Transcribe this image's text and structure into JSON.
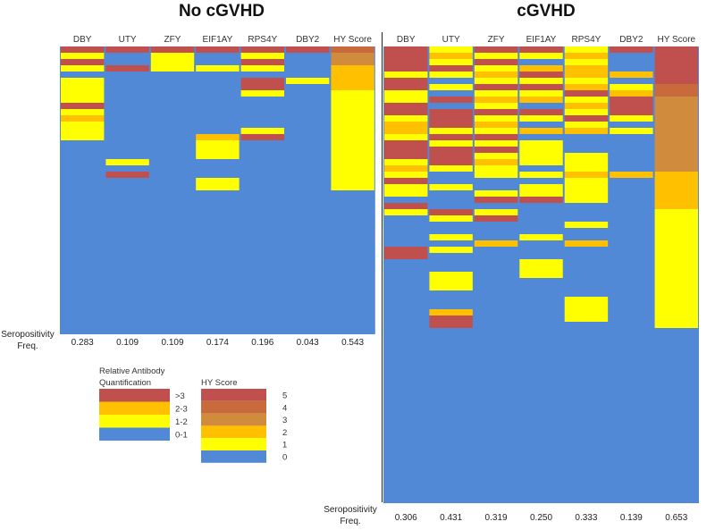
{
  "chart_data": {
    "type": "heatmap",
    "colors": {
      "0": "#5289D6",
      "1": "#FFFF00",
      "2": "#FFC000",
      "3": "#D08C3C",
      "4": "#C86A3C",
      "5": "#C0504D"
    },
    "panels": [
      {
        "title": "No cGVHD",
        "n_rows": 46,
        "columns": [
          "DBY",
          "UTY",
          "ZFY",
          "EIF1AY",
          "RPS4Y",
          "DBY2",
          "HY Score"
        ],
        "frequency_label": [
          "Seropositivity",
          "Freq."
        ],
        "frequencies": [
          "0.283",
          "0.109",
          "0.109",
          "0.174",
          "0.196",
          "0.043",
          "0.543"
        ],
        "runs": [
          [
            [
              0,
              1,
              5
            ],
            [
              1,
              2,
              1
            ],
            [
              2,
              3,
              5
            ],
            [
              3,
              4,
              1
            ],
            [
              4,
              5,
              0
            ],
            [
              5,
              6,
              1
            ],
            [
              6,
              9,
              1
            ],
            [
              9,
              10,
              5
            ],
            [
              10,
              11,
              1
            ],
            [
              11,
              12,
              2
            ],
            [
              12,
              15,
              1
            ]
          ],
          [
            [
              0,
              1,
              5
            ],
            [
              1,
              3,
              0
            ],
            [
              3,
              4,
              5
            ],
            [
              18,
              19,
              1
            ],
            [
              20,
              21,
              5
            ]
          ],
          [
            [
              0,
              1,
              5
            ],
            [
              1,
              4,
              1
            ]
          ],
          [
            [
              0,
              1,
              5
            ],
            [
              1,
              3,
              0
            ],
            [
              3,
              4,
              1
            ],
            [
              14,
              15,
              2
            ],
            [
              15,
              18,
              1
            ],
            [
              21,
              23,
              1
            ]
          ],
          [
            [
              0,
              1,
              5
            ],
            [
              1,
              2,
              1
            ],
            [
              2,
              3,
              5
            ],
            [
              3,
              4,
              1
            ],
            [
              5,
              7,
              5
            ],
            [
              7,
              8,
              1
            ],
            [
              13,
              14,
              1
            ],
            [
              14,
              15,
              5
            ]
          ],
          [
            [
              0,
              1,
              5
            ],
            [
              5,
              6,
              1
            ]
          ],
          [
            [
              0,
              1,
              4
            ],
            [
              1,
              3,
              3
            ],
            [
              3,
              4,
              2
            ],
            [
              4,
              7,
              2
            ],
            [
              7,
              23,
              1
            ]
          ]
        ]
      },
      {
        "title": "cGVHD",
        "n_rows": 73,
        "columns": [
          "DBY",
          "UTY",
          "ZFY",
          "EIF1AY",
          "RPS4Y",
          "DBY2",
          "HY Score"
        ],
        "frequency_label": [
          "Seropositivity",
          "Freq."
        ],
        "frequencies": [
          "0.306",
          "0.431",
          "0.319",
          "0.250",
          "0.333",
          "0.139",
          "0.653"
        ],
        "runs": [
          [
            [
              0,
              4,
              5
            ],
            [
              4,
              5,
              1
            ],
            [
              5,
              7,
              5
            ],
            [
              7,
              8,
              1
            ],
            [
              8,
              9,
              1
            ],
            [
              9,
              11,
              5
            ],
            [
              11,
              12,
              1
            ],
            [
              12,
              14,
              2
            ],
            [
              14,
              15,
              1
            ],
            [
              15,
              16,
              5
            ],
            [
              16,
              18,
              5
            ],
            [
              18,
              19,
              1
            ],
            [
              19,
              20,
              2
            ],
            [
              20,
              21,
              1
            ],
            [
              21,
              22,
              5
            ],
            [
              22,
              23,
              1
            ],
            [
              23,
              24,
              1
            ],
            [
              25,
              26,
              5
            ],
            [
              26,
              27,
              1
            ],
            [
              32,
              34,
              5
            ]
          ],
          [
            [
              0,
              1,
              1
            ],
            [
              1,
              2,
              2
            ],
            [
              2,
              3,
              1
            ],
            [
              3,
              4,
              5
            ],
            [
              4,
              5,
              1
            ],
            [
              6,
              7,
              1
            ],
            [
              8,
              9,
              5
            ],
            [
              10,
              13,
              5
            ],
            [
              13,
              14,
              1
            ],
            [
              14,
              15,
              5
            ],
            [
              15,
              16,
              1
            ],
            [
              16,
              19,
              5
            ],
            [
              19,
              20,
              1
            ],
            [
              22,
              23,
              1
            ],
            [
              26,
              27,
              5
            ],
            [
              27,
              28,
              1
            ],
            [
              30,
              31,
              1
            ],
            [
              32,
              33,
              1
            ],
            [
              36,
              39,
              1
            ],
            [
              42,
              43,
              2
            ],
            [
              43,
              45,
              5
            ]
          ],
          [
            [
              0,
              1,
              5
            ],
            [
              1,
              2,
              1
            ],
            [
              2,
              3,
              5
            ],
            [
              3,
              4,
              1
            ],
            [
              4,
              5,
              2
            ],
            [
              5,
              6,
              1
            ],
            [
              6,
              7,
              5
            ],
            [
              7,
              8,
              1
            ],
            [
              8,
              9,
              2
            ],
            [
              9,
              10,
              1
            ],
            [
              10,
              11,
              5
            ],
            [
              11,
              12,
              1
            ],
            [
              12,
              13,
              2
            ],
            [
              13,
              14,
              1
            ],
            [
              14,
              15,
              5
            ],
            [
              15,
              16,
              1
            ],
            [
              16,
              17,
              5
            ],
            [
              17,
              18,
              1
            ],
            [
              18,
              19,
              2
            ],
            [
              19,
              20,
              1
            ],
            [
              20,
              21,
              1
            ],
            [
              23,
              24,
              1
            ],
            [
              24,
              25,
              5
            ],
            [
              26,
              27,
              1
            ],
            [
              27,
              28,
              5
            ],
            [
              31,
              32,
              2
            ]
          ],
          [
            [
              0,
              1,
              5
            ],
            [
              1,
              2,
              1
            ],
            [
              3,
              4,
              2
            ],
            [
              4,
              5,
              5
            ],
            [
              5,
              6,
              1
            ],
            [
              6,
              7,
              5
            ],
            [
              7,
              8,
              1
            ],
            [
              8,
              9,
              2
            ],
            [
              10,
              11,
              5
            ],
            [
              11,
              12,
              1
            ],
            [
              13,
              14,
              2
            ],
            [
              15,
              17,
              1
            ],
            [
              17,
              18,
              1
            ],
            [
              18,
              19,
              1
            ],
            [
              20,
              21,
              1
            ],
            [
              22,
              23,
              1
            ],
            [
              23,
              24,
              1
            ],
            [
              24,
              25,
              5
            ],
            [
              30,
              31,
              1
            ],
            [
              34,
              37,
              1
            ]
          ],
          [
            [
              0,
              1,
              1
            ],
            [
              1,
              2,
              2
            ],
            [
              2,
              3,
              1
            ],
            [
              3,
              5,
              2
            ],
            [
              5,
              6,
              1
            ],
            [
              6,
              7,
              2
            ],
            [
              7,
              8,
              5
            ],
            [
              8,
              9,
              1
            ],
            [
              9,
              10,
              2
            ],
            [
              10,
              11,
              1
            ],
            [
              11,
              12,
              5
            ],
            [
              12,
              13,
              1
            ],
            [
              13,
              14,
              2
            ],
            [
              17,
              19,
              1
            ],
            [
              19,
              20,
              1
            ],
            [
              20,
              21,
              2
            ],
            [
              21,
              22,
              1
            ],
            [
              22,
              25,
              1
            ],
            [
              28,
              29,
              1
            ],
            [
              31,
              32,
              2
            ],
            [
              40,
              44,
              1
            ]
          ],
          [
            [
              0,
              1,
              5
            ],
            [
              4,
              5,
              2
            ],
            [
              6,
              7,
              1
            ],
            [
              7,
              8,
              2
            ],
            [
              8,
              11,
              5
            ],
            [
              11,
              12,
              1
            ],
            [
              13,
              14,
              1
            ],
            [
              20,
              21,
              2
            ]
          ],
          [
            [
              0,
              6,
              5
            ],
            [
              6,
              8,
              4
            ],
            [
              8,
              12,
              3
            ],
            [
              12,
              17,
              3
            ],
            [
              17,
              20,
              3
            ],
            [
              20,
              26,
              2
            ],
            [
              26,
              45,
              1
            ]
          ]
        ]
      }
    ],
    "legend_antibody": {
      "title": [
        "Relative Antibody",
        "Quantification"
      ],
      "items": [
        {
          "label": ">3",
          "level": 5
        },
        {
          "label": "2-3",
          "level": 2
        },
        {
          "label": "1-2",
          "level": 1
        },
        {
          "label": "0-1",
          "level": 0
        }
      ]
    },
    "legend_hy": {
      "title": "HY Score",
      "items": [
        {
          "label": "5",
          "level": 5
        },
        {
          "label": "4",
          "level": 4
        },
        {
          "label": "3",
          "level": 3
        },
        {
          "label": "2",
          "level": 2
        },
        {
          "label": "1",
          "level": 1
        },
        {
          "label": "0",
          "level": 0
        }
      ]
    }
  }
}
